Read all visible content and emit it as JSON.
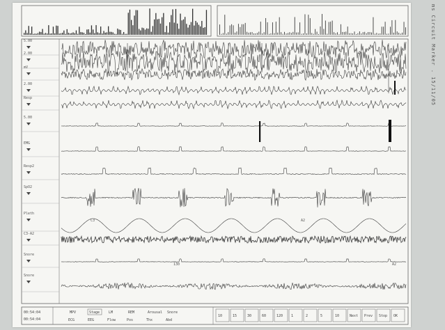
{
  "margin_text": "ms Circuit  Marker  .  15/11/05",
  "channels": [
    {
      "id": "ch1",
      "scale": "5.00"
    },
    {
      "id": "ch2",
      "scale": "2.00"
    },
    {
      "id": "ch3",
      "scale": "mV"
    },
    {
      "id": "ch4",
      "scale": "2.00"
    },
    {
      "id": "ch5",
      "scale": "Resp"
    },
    {
      "id": "ch6",
      "scale": "5.00"
    },
    {
      "id": "ch7",
      "scale": "EMG"
    },
    {
      "id": "ch8",
      "scale": "Resp2"
    },
    {
      "id": "ch9",
      "scale": "SpO2"
    },
    {
      "id": "ch10",
      "scale": "Pleth"
    },
    {
      "id": "ch11",
      "scale": "C3-A2"
    },
    {
      "id": "ch12",
      "scale": "Snore"
    }
  ],
  "annotations": [
    "C3",
    "A2",
    "130",
    "A2"
  ],
  "footer": {
    "time_top": "00:54:04",
    "time_bottom": "00:54:04",
    "mid_top": [
      "MPV",
      "Stage",
      "LM",
      "REM",
      "Arousal",
      "Snore"
    ],
    "mid_bottom": [
      "ECG",
      "EEG",
      "Flow",
      "Pos",
      "Thx",
      "Abd"
    ],
    "right_buttons": [
      "10",
      "15",
      "30",
      "60",
      "120",
      "1",
      "2",
      "5",
      "10",
      "Next",
      "Prev",
      "Stop",
      "OK"
    ]
  },
  "colors": {
    "paper": "#f6f6f3",
    "background": "#cfd2d0",
    "trace": "#3a3a3a",
    "marker": "#111111"
  }
}
